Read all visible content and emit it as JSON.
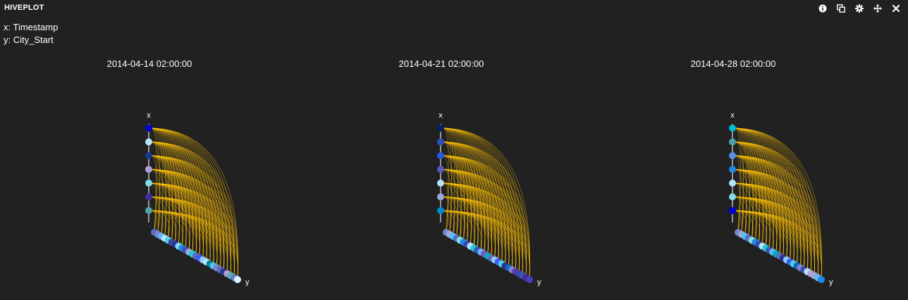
{
  "panel": {
    "title": "HIVEPLOT",
    "toolbar": [
      {
        "icon": "info-icon",
        "label": "Info"
      },
      {
        "icon": "copy-icon",
        "label": "Duplicate"
      },
      {
        "icon": "gear-icon",
        "label": "Settings"
      },
      {
        "icon": "move-icon",
        "label": "Move"
      },
      {
        "icon": "close-icon",
        "label": "Close"
      }
    ]
  },
  "encodings": {
    "x": "x: Timestamp",
    "y": "y: City_Start"
  },
  "axis_names": {
    "x": "x",
    "y": "y"
  },
  "link_color": "#ffc107",
  "axis_color": "#bdbdbd",
  "plots": [
    {
      "title": "2014-04-14 02:00:00",
      "x_node_colors": [
        "#0000d6",
        "#b3e5fc",
        "#1a3a8c",
        "#b39ddb",
        "#80deea",
        "#3f2fa0",
        "#4fa3a8"
      ],
      "y_node_colors": [
        "#5c6bc0",
        "#7986cb",
        "#64b5f6",
        "#b3e5fc",
        "#4dd0e1",
        "#3949ab",
        "#283593",
        "#81d4fa",
        "#1e88e5",
        "#3f51b5",
        "#9fa8da",
        "#26c6da",
        "#5c6bc0",
        "#3d5afe",
        "#90caf9",
        "#b3e5fc",
        "#00838f",
        "#4fc3f7",
        "#7986cb",
        "#5c6bc0",
        "#283593",
        "#b39ddb",
        "#4db6ac",
        "#6a7fd8",
        "#e1f5fe"
      ]
    },
    {
      "title": "2014-04-21 02:00:00",
      "x_node_colors": [
        "#0d1f5c",
        "#2f4fb8",
        "#2a57e0",
        "#5c5cb8",
        "#b3e5fc",
        "#9fa8da",
        "#0288d1"
      ],
      "y_node_colors": [
        "#7986cb",
        "#9fa8da",
        "#4fc3f7",
        "#5c6bc0",
        "#80deea",
        "#1e88e5",
        "#3949ab",
        "#b3e5fc",
        "#26c6da",
        "#3f51b5",
        "#64b5f6",
        "#7e57c2",
        "#00acc1",
        "#5c6bc0",
        "#90caf9",
        "#3d5afe",
        "#4dd0e1",
        "#283593",
        "#1565c0",
        "#7986cb",
        "#5e35b1",
        "#3949ab",
        "#3f51b5",
        "#4527a0",
        "#3f3fbf"
      ]
    },
    {
      "title": "2014-04-28 02:00:00",
      "x_node_colors": [
        "#00bcd4",
        "#4fa3a8",
        "#5c8ee0",
        "#1e88e5",
        "#b3e5fc",
        "#80deea",
        "#0000d6"
      ],
      "y_node_colors": [
        "#7986cb",
        "#9fa8da",
        "#4fc3f7",
        "#5c6bc0",
        "#80deea",
        "#1e88e5",
        "#3949ab",
        "#b3e5fc",
        "#26c6da",
        "#3f51b5",
        "#64b5f6",
        "#00acc1",
        "#5c6bc0",
        "#283593",
        "#90caf9",
        "#3d5afe",
        "#4dd0e1",
        "#1565c0",
        "#7986cb",
        "#3949ab",
        "#b3e5fc",
        "#b39ddb",
        "#9fa8da",
        "#64b5f6",
        "#1e88e5"
      ]
    }
  ]
}
